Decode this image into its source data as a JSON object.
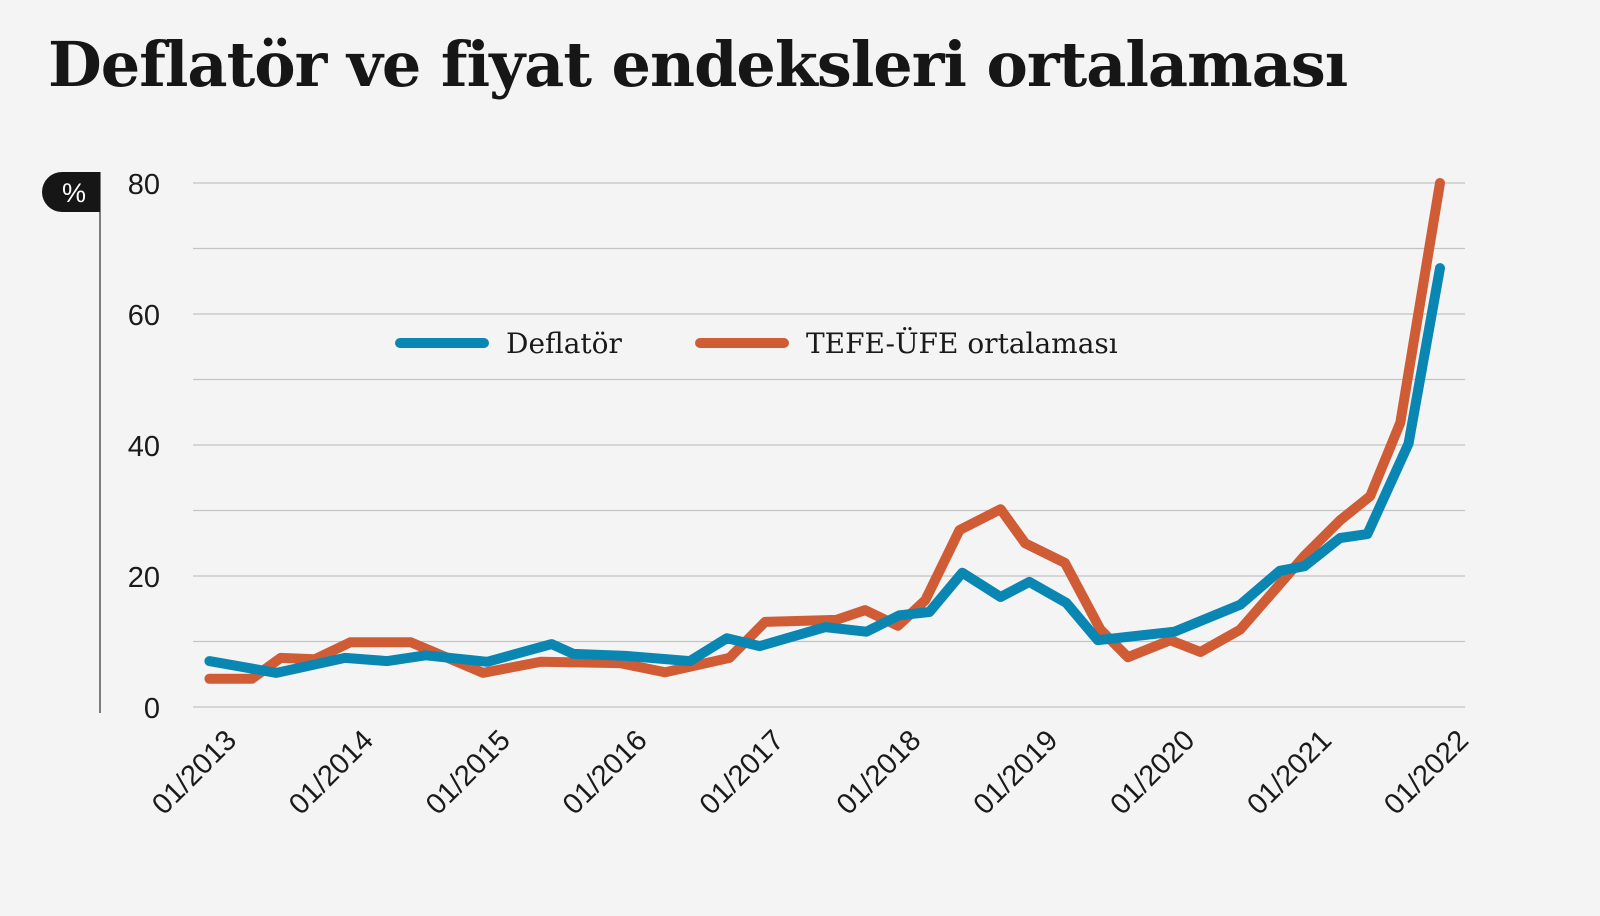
{
  "chart_data": {
    "type": "line",
    "title": "Deflatör ve fiyat endeksleri ortalaması",
    "ylabel": "%",
    "xlabel": "",
    "ylim": [
      0,
      80
    ],
    "xlim": [
      2013.0,
      2022.0
    ],
    "yticks": [
      "0",
      "20",
      "40",
      "60",
      "80"
    ],
    "ytick_values": [
      0,
      20,
      40,
      60,
      80
    ],
    "xticks": [
      "01/2013",
      "01/2014",
      "01/2015",
      "01/2016",
      "01/2017",
      "01/2018",
      "01/2019",
      "01/2020",
      "01/2021",
      "01/2022"
    ],
    "xtick_values": [
      2013,
      2014,
      2015,
      2016,
      2017,
      2018,
      2019,
      2020,
      2021,
      2022
    ],
    "grid": true,
    "legend_position": "top-center",
    "series": [
      {
        "name": "Deflatör",
        "color": "#0a86b3",
        "x": [
          2013.01,
          2013.5,
          2014.0,
          2014.31,
          2014.59,
          2015.04,
          2015.51,
          2015.67,
          2016.05,
          2016.52,
          2016.79,
          2017.03,
          2017.51,
          2017.81,
          2018.05,
          2018.27,
          2018.51,
          2018.79,
          2019.0,
          2019.27,
          2019.5,
          2020.06,
          2020.54,
          2020.83,
          2021.01,
          2021.27,
          2021.47,
          2021.77,
          2022.0
        ],
        "y": [
          7.0,
          5.2,
          7.5,
          7.0,
          7.9,
          6.9,
          9.6,
          8.1,
          7.8,
          7.0,
          10.5,
          9.3,
          12.2,
          11.5,
          14.0,
          14.5,
          20.5,
          16.8,
          19.1,
          15.9,
          10.2,
          11.5,
          15.6,
          20.8,
          21.5,
          25.8,
          26.4,
          40.2,
          67.0
        ]
      },
      {
        "name": "TEFE-ÜFE ortalaması",
        "color": "#d05c36",
        "x": [
          2013.01,
          2013.32,
          2013.53,
          2013.78,
          2014.04,
          2014.48,
          2015.01,
          2015.43,
          2016.01,
          2016.34,
          2016.81,
          2017.07,
          2017.59,
          2017.8,
          2018.04,
          2018.24,
          2018.49,
          2018.79,
          2018.97,
          2019.26,
          2019.52,
          2019.72,
          2020.03,
          2020.25,
          2020.54,
          2021.01,
          2021.27,
          2021.49,
          2021.71,
          2022.0
        ],
        "y": [
          4.3,
          4.3,
          7.5,
          7.3,
          9.9,
          9.9,
          5.2,
          6.9,
          6.7,
          5.3,
          7.5,
          13.0,
          13.3,
          14.8,
          12.4,
          16.3,
          27.0,
          30.2,
          25.0,
          22.0,
          11.8,
          7.6,
          10.2,
          8.4,
          11.8,
          23.1,
          28.5,
          32.2,
          43.4,
          80.0
        ]
      }
    ]
  }
}
